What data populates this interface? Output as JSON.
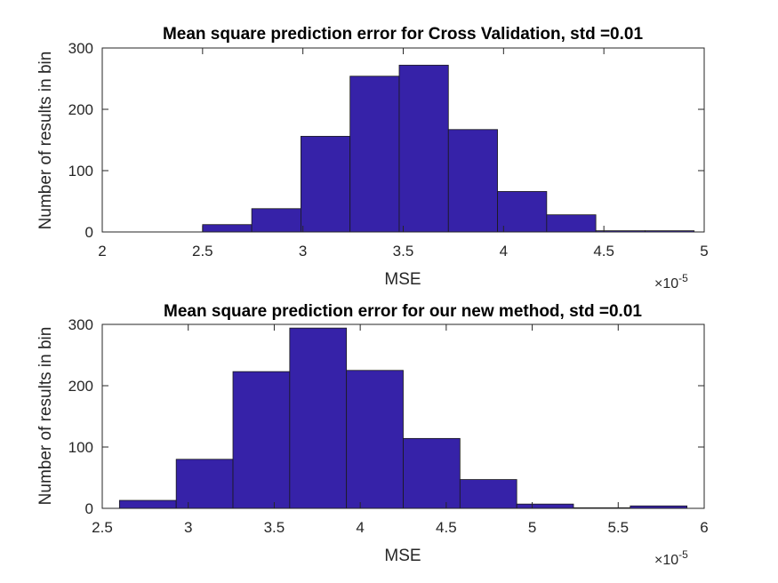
{
  "figure": {
    "background": "#ffffff"
  },
  "chart_data": [
    {
      "type": "bar",
      "subtype": "histogram",
      "title": "Mean square prediction error for Cross Validation, std =0.01",
      "xlabel": "MSE",
      "ylabel": "Number of results in bin",
      "x_exponent_base": "×10",
      "x_exponent_power": "-5",
      "xlim": [
        2,
        5
      ],
      "ylim": [
        0,
        300
      ],
      "xticks": [
        "2",
        "2.5",
        "3",
        "3.5",
        "4",
        "4.5",
        "5"
      ],
      "xtick_values": [
        2,
        2.5,
        3,
        3.5,
        4,
        4.5,
        5
      ],
      "yticks": [
        "0",
        "100",
        "200",
        "300"
      ],
      "ytick_values": [
        0,
        100,
        200,
        300
      ],
      "bin_edges": [
        2.5,
        2.745,
        2.99,
        3.235,
        3.48,
        3.725,
        3.97,
        4.215,
        4.46,
        4.705,
        4.95
      ],
      "values": [
        12,
        38,
        156,
        254,
        272,
        167,
        66,
        28,
        2,
        2
      ],
      "bar_color": "#3622a8",
      "edge_color": "#1a1a1a",
      "grid": false
    },
    {
      "type": "bar",
      "subtype": "histogram",
      "title": "Mean square prediction error for our new method, std =0.01",
      "xlabel": "MSE",
      "ylabel": "Number of results in bin",
      "x_exponent_base": "×10",
      "x_exponent_power": "-5",
      "xlim": [
        2.5,
        6
      ],
      "ylim": [
        0,
        300
      ],
      "xticks": [
        "2.5",
        "3",
        "3.5",
        "4",
        "4.5",
        "5",
        "5.5",
        "6"
      ],
      "xtick_values": [
        2.5,
        3,
        3.5,
        4,
        4.5,
        5,
        5.5,
        6
      ],
      "yticks": [
        "0",
        "100",
        "200",
        "300"
      ],
      "ytick_values": [
        0,
        100,
        200,
        300
      ],
      "bin_edges": [
        2.6,
        2.93,
        3.26,
        3.59,
        3.92,
        4.25,
        4.58,
        4.91,
        5.24,
        5.57,
        5.9
      ],
      "values": [
        13,
        80,
        223,
        294,
        225,
        114,
        47,
        7,
        1,
        4
      ],
      "bar_color": "#3622a8",
      "edge_color": "#1a1a1a",
      "grid": false
    }
  ]
}
